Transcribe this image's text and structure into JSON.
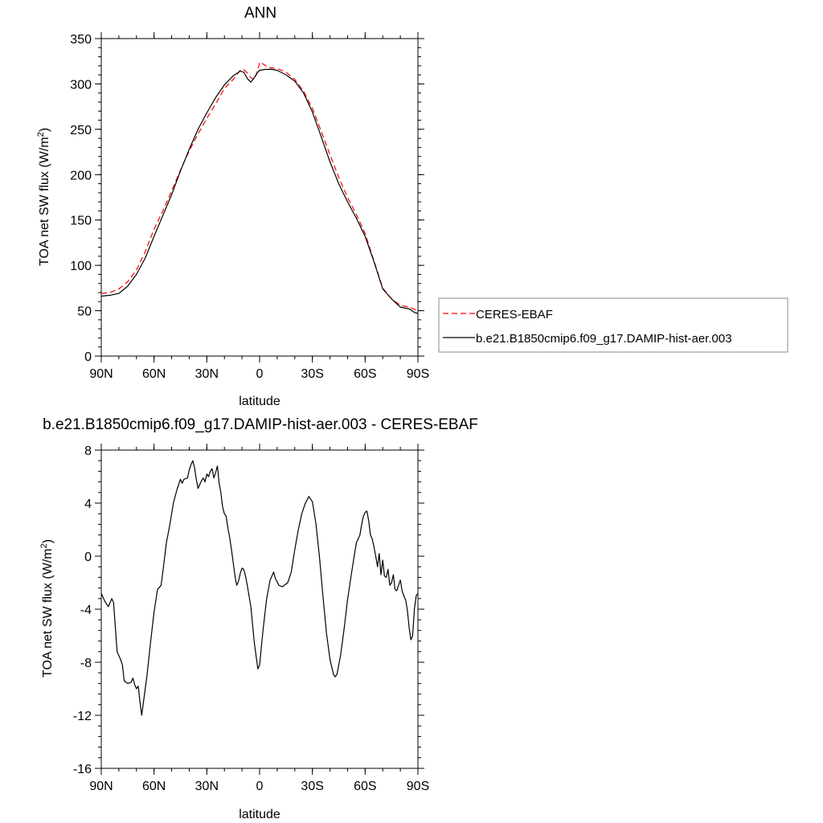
{
  "chart_data": [
    {
      "type": "line",
      "title": "ANN",
      "xlabel": "latitude",
      "ylabel": "TOA net SW flux (W/m",
      "ylabel_sup": "2",
      "ylabel_end": ")",
      "xlim": [
        90,
        -90
      ],
      "ylim": [
        0,
        350
      ],
      "yticks": [
        0,
        50,
        100,
        150,
        200,
        250,
        300,
        350
      ],
      "xticks": [
        90,
        60,
        30,
        0,
        -30,
        -60,
        -90
      ],
      "xtick_labels": [
        "90N",
        "60N",
        "30N",
        "0",
        "30S",
        "60S",
        "90S"
      ],
      "legend": "right",
      "series": [
        {
          "name": "CERES-EBAF",
          "color": "#ff0000",
          "dash": "dashed",
          "points": [
            [
              90,
              69
            ],
            [
              85,
              70
            ],
            [
              80,
              74
            ],
            [
              75,
              82
            ],
            [
              70,
              95
            ],
            [
              65,
              115
            ],
            [
              60,
              140
            ],
            [
              55,
              160
            ],
            [
              50,
              182
            ],
            [
              45,
              205
            ],
            [
              40,
              226
            ],
            [
              35,
              245
            ],
            [
              30,
              262
            ],
            [
              25,
              278
            ],
            [
              20,
              295
            ],
            [
              15,
              305
            ],
            [
              11,
              315
            ],
            [
              9,
              316
            ],
            [
              7,
              312
            ],
            [
              5,
              307
            ],
            [
              3,
              305
            ],
            [
              1,
              315
            ],
            [
              0,
              324
            ],
            [
              -2,
              322
            ],
            [
              -5,
              318
            ],
            [
              -10,
              317
            ],
            [
              -15,
              313
            ],
            [
              -20,
              305
            ],
            [
              -25,
              292
            ],
            [
              -30,
              273
            ],
            [
              -35,
              248
            ],
            [
              -40,
              222
            ],
            [
              -45,
              197
            ],
            [
              -50,
              175
            ],
            [
              -55,
              156
            ],
            [
              -60,
              135
            ],
            [
              -65,
              105
            ],
            [
              -70,
              75
            ],
            [
              -75,
              63
            ],
            [
              -80,
              56
            ],
            [
              -85,
              54
            ],
            [
              -90,
              50
            ]
          ]
        },
        {
          "name": "b.e21.B1850cmip6.f09_g17.DAMIP-hist-aer.003",
          "color": "#000000",
          "dash": "solid",
          "points": [
            [
              90,
              66
            ],
            [
              85,
              67
            ],
            [
              80,
              69
            ],
            [
              75,
              77
            ],
            [
              70,
              90
            ],
            [
              65,
              108
            ],
            [
              60,
              132
            ],
            [
              55,
              155
            ],
            [
              50,
              178
            ],
            [
              45,
              204
            ],
            [
              40,
              228
            ],
            [
              35,
              250
            ],
            [
              30,
              268
            ],
            [
              25,
              285
            ],
            [
              20,
              299
            ],
            [
              15,
              309
            ],
            [
              11,
              314
            ],
            [
              9,
              313
            ],
            [
              7,
              306
            ],
            [
              5,
              302
            ],
            [
              3,
              307
            ],
            [
              1,
              313
            ],
            [
              0,
              315
            ],
            [
              -3,
              316
            ],
            [
              -7,
              316
            ],
            [
              -10,
              315
            ],
            [
              -15,
              310
            ],
            [
              -20,
              303
            ],
            [
              -25,
              290
            ],
            [
              -30,
              269
            ],
            [
              -35,
              242
            ],
            [
              -40,
              214
            ],
            [
              -45,
              190
            ],
            [
              -50,
              170
            ],
            [
              -55,
              152
            ],
            [
              -60,
              132
            ],
            [
              -65,
              104
            ],
            [
              -70,
              74
            ],
            [
              -75,
              63
            ],
            [
              -80,
              54
            ],
            [
              -85,
              52
            ],
            [
              -88,
              48
            ],
            [
              -90,
              47
            ]
          ]
        }
      ]
    },
    {
      "type": "line",
      "title": "b.e21.B1850cmip6.f09_g17.DAMIP-hist-aer.003 - CERES-EBAF",
      "xlabel": "latitude",
      "ylabel": "TOA net SW flux (W/m",
      "ylabel_sup": "2",
      "ylabel_end": ")",
      "xlim": [
        90,
        -90
      ],
      "ylim": [
        -16,
        8
      ],
      "yticks": [
        -16,
        -12,
        -8,
        -4,
        0,
        4,
        8
      ],
      "xticks": [
        90,
        60,
        30,
        0,
        -30,
        -60,
        -90
      ],
      "xtick_labels": [
        "90N",
        "60N",
        "30N",
        "0",
        "30S",
        "60S",
        "90S"
      ],
      "series": [
        {
          "color": "#000000",
          "dash": "solid",
          "points": [
            [
              90,
              -2.8
            ],
            [
              88,
              -3.4
            ],
            [
              86,
              -3.8
            ],
            [
              84,
              -3.2
            ],
            [
              83,
              -3.5
            ],
            [
              81,
              -7.2
            ],
            [
              79,
              -7.8
            ],
            [
              78,
              -8.2
            ],
            [
              77,
              -9.4
            ],
            [
              75,
              -9.6
            ],
            [
              73,
              -9.5
            ],
            [
              72,
              -9.2
            ],
            [
              71,
              -9.7
            ],
            [
              70,
              -10.0
            ],
            [
              69,
              -9.8
            ],
            [
              68,
              -11.0
            ],
            [
              67,
              -12.0
            ],
            [
              66,
              -11.0
            ],
            [
              64,
              -9.0
            ],
            [
              62,
              -6.5
            ],
            [
              60,
              -4.2
            ],
            [
              58,
              -2.5
            ],
            [
              56,
              -2.2
            ],
            [
              55,
              -1.2
            ],
            [
              53,
              1.0
            ],
            [
              51,
              2.4
            ],
            [
              49,
              4.0
            ],
            [
              47,
              5.0
            ],
            [
              45,
              5.8
            ],
            [
              44,
              5.5
            ],
            [
              43,
              5.8
            ],
            [
              41,
              5.9
            ],
            [
              40,
              6.5
            ],
            [
              39,
              6.9
            ],
            [
              38,
              7.2
            ],
            [
              37,
              6.7
            ],
            [
              36,
              5.8
            ],
            [
              35,
              5.1
            ],
            [
              34,
              5.4
            ],
            [
              33,
              5.7
            ],
            [
              32,
              5.9
            ],
            [
              31,
              5.6
            ],
            [
              30,
              6.2
            ],
            [
              29,
              6.0
            ],
            [
              28,
              6.4
            ],
            [
              27,
              6.6
            ],
            [
              26,
              5.9
            ],
            [
              25,
              6.3
            ],
            [
              24,
              6.8
            ],
            [
              23,
              5.5
            ],
            [
              22,
              4.8
            ],
            [
              21,
              3.7
            ],
            [
              20,
              3.2
            ],
            [
              19,
              3.0
            ],
            [
              18,
              2.1
            ],
            [
              17,
              1.4
            ],
            [
              16,
              0.5
            ],
            [
              15,
              -0.5
            ],
            [
              14,
              -1.5
            ],
            [
              13,
              -2.2
            ],
            [
              12,
              -1.9
            ],
            [
              11,
              -1.3
            ],
            [
              10,
              -0.9
            ],
            [
              9,
              -1.0
            ],
            [
              8,
              -1.5
            ],
            [
              7,
              -2.2
            ],
            [
              5,
              -3.8
            ],
            [
              3,
              -6.5
            ],
            [
              1,
              -8.5
            ],
            [
              0,
              -8.2
            ],
            [
              -2,
              -5.5
            ],
            [
              -4,
              -3.2
            ],
            [
              -6,
              -1.8
            ],
            [
              -8,
              -1.2
            ],
            [
              -9,
              -1.7
            ],
            [
              -11,
              -2.2
            ],
            [
              -13,
              -2.3
            ],
            [
              -15,
              -2.1
            ],
            [
              -16,
              -2.0
            ],
            [
              -18,
              -1.2
            ],
            [
              -20,
              0.5
            ],
            [
              -22,
              2.0
            ],
            [
              -24,
              3.2
            ],
            [
              -26,
              4.0
            ],
            [
              -28,
              4.5
            ],
            [
              -30,
              4.1
            ],
            [
              -32,
              2.5
            ],
            [
              -34,
              0.0
            ],
            [
              -36,
              -3.0
            ],
            [
              -38,
              -5.8
            ],
            [
              -40,
              -7.8
            ],
            [
              -42,
              -8.9
            ],
            [
              -43,
              -9.1
            ],
            [
              -44,
              -8.9
            ],
            [
              -46,
              -7.5
            ],
            [
              -48,
              -5.5
            ],
            [
              -50,
              -3.3
            ],
            [
              -52,
              -1.5
            ],
            [
              -54,
              0.2
            ],
            [
              -55,
              1.0
            ],
            [
              -56,
              1.3
            ],
            [
              -57,
              1.6
            ],
            [
              -58,
              2.4
            ],
            [
              -59,
              3.0
            ],
            [
              -60,
              3.3
            ],
            [
              -61,
              3.4
            ],
            [
              -62,
              2.7
            ],
            [
              -63,
              1.6
            ],
            [
              -64,
              1.3
            ],
            [
              -65,
              0.7
            ],
            [
              -66,
              0.0
            ],
            [
              -67,
              -0.8
            ],
            [
              -68,
              0.2
            ],
            [
              -69,
              -1.4
            ],
            [
              -70,
              -0.3
            ],
            [
              -71,
              -1.5
            ],
            [
              -72,
              -1.6
            ],
            [
              -73,
              -1.0
            ],
            [
              -74,
              -2.2
            ],
            [
              -75,
              -2.0
            ],
            [
              -76,
              -1.4
            ],
            [
              -77,
              -2.5
            ],
            [
              -78,
              -2.6
            ],
            [
              -79,
              -2.2
            ],
            [
              -80,
              -1.8
            ],
            [
              -81,
              -2.6
            ],
            [
              -82,
              -3.0
            ],
            [
              -83,
              -3.3
            ],
            [
              -84,
              -4.1
            ],
            [
              -85,
              -5.4
            ],
            [
              -86,
              -6.3
            ],
            [
              -87,
              -6.0
            ],
            [
              -88,
              -4.0
            ],
            [
              -89,
              -3.0
            ],
            [
              -90,
              -2.8
            ]
          ]
        }
      ]
    }
  ]
}
